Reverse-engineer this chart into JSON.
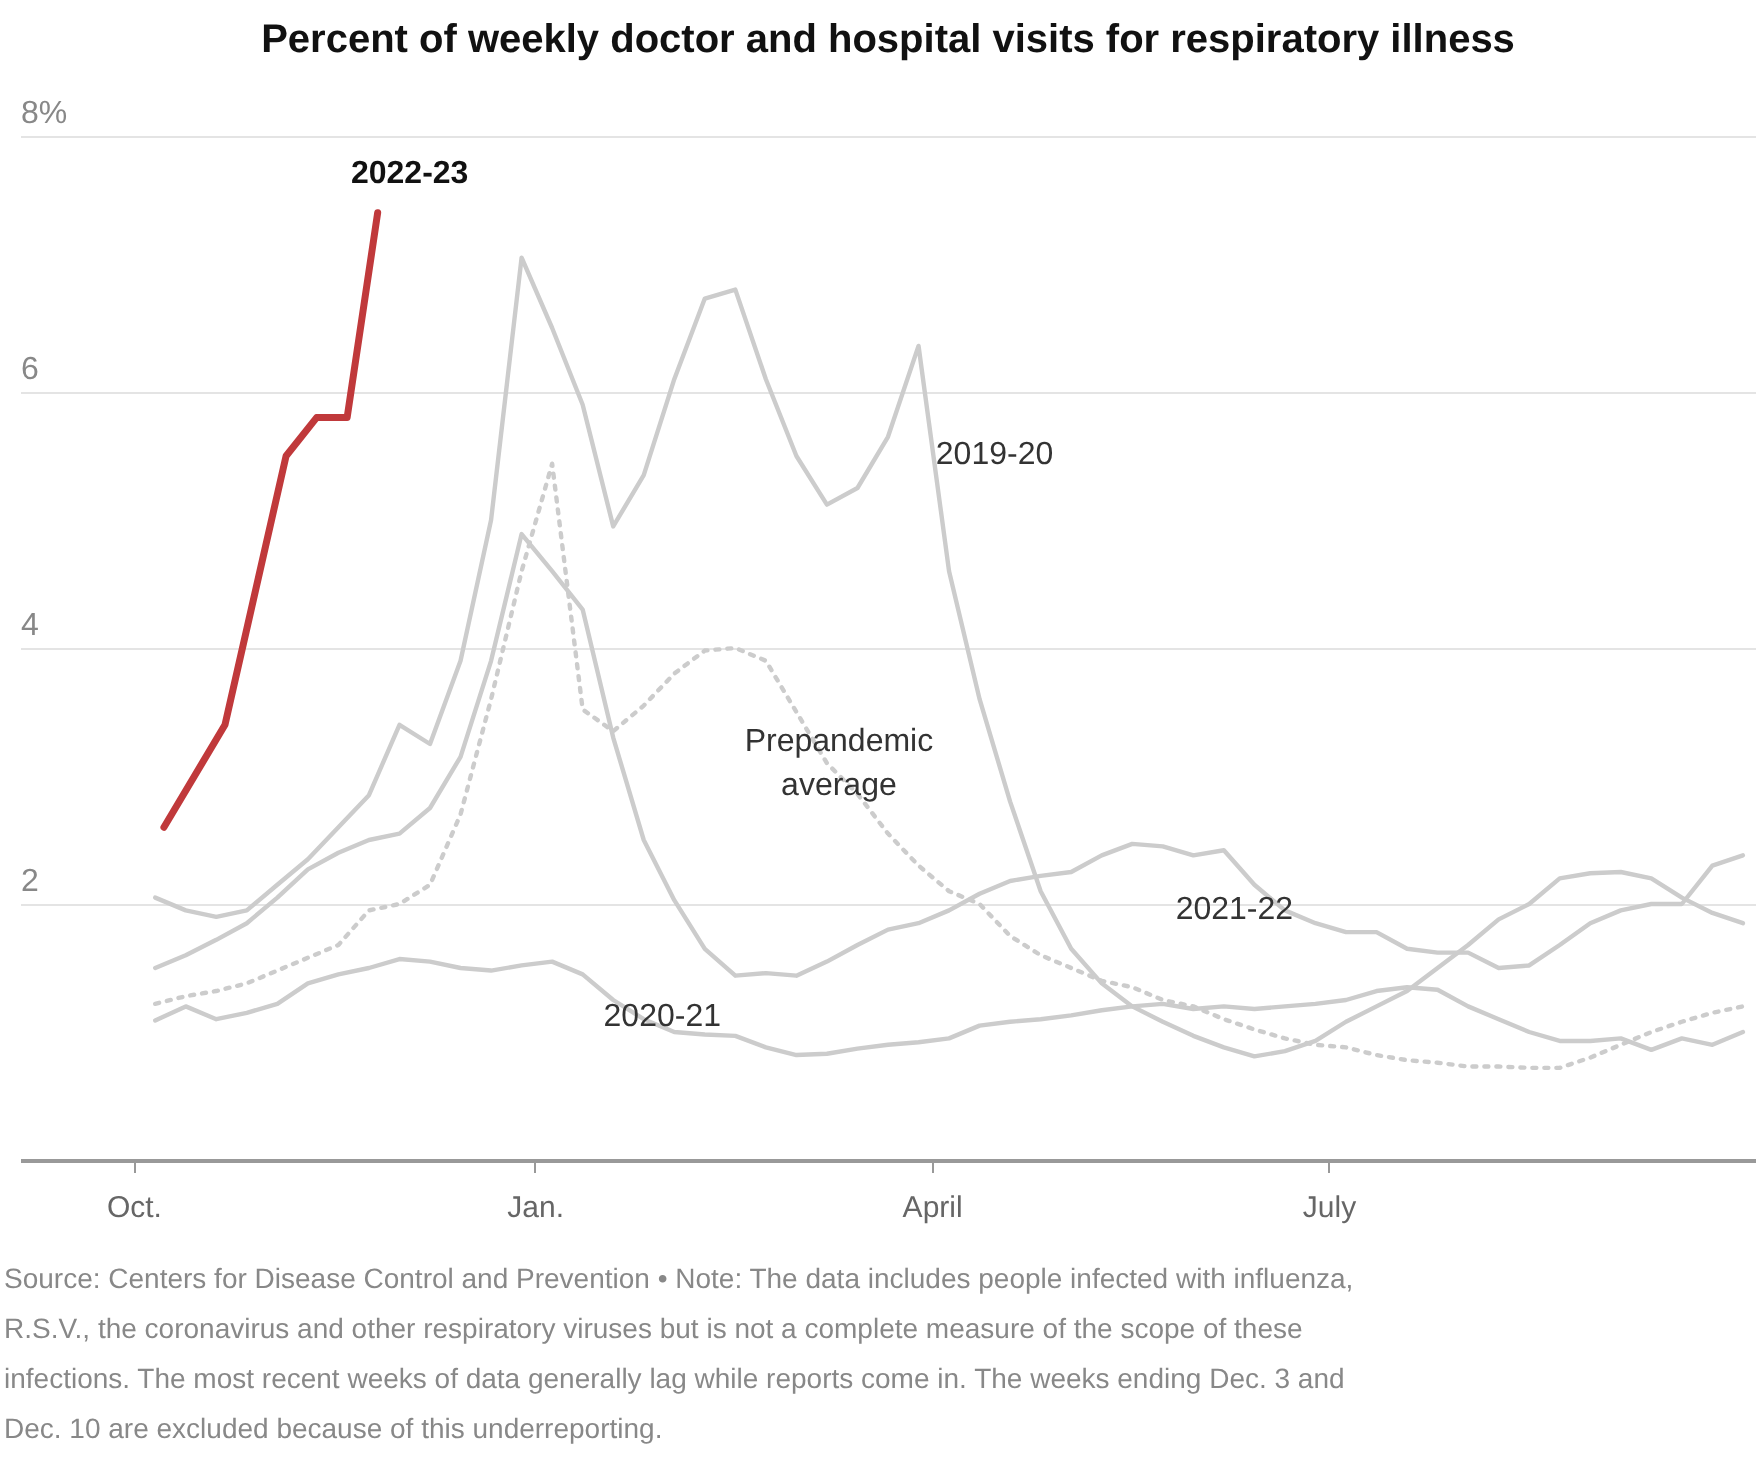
{
  "chart_data": {
    "type": "line",
    "title": "Percent of weekly doctor and hospital visits for respiratory illness",
    "x": [
      "2019-10-06",
      "2019-10-13",
      "2019-10-20",
      "2019-10-27",
      "2019-11-03",
      "2019-11-10",
      "2019-11-17",
      "2019-11-24",
      "2019-12-01",
      "2019-12-08",
      "2019-12-15",
      "2019-12-22",
      "2019-12-29",
      "2020-01-05",
      "2020-01-12",
      "2020-01-19",
      "2020-01-26",
      "2020-02-02",
      "2020-02-09",
      "2020-02-16",
      "2020-02-23",
      "2020-03-01",
      "2020-03-08",
      "2020-03-15",
      "2020-03-22",
      "2020-03-29",
      "2020-04-05",
      "2020-04-12",
      "2020-04-19",
      "2020-04-26",
      "2020-05-03",
      "2020-05-10",
      "2020-05-17",
      "2020-05-24",
      "2020-05-31",
      "2020-06-07",
      "2020-06-14",
      "2020-06-21",
      "2020-06-28",
      "2020-07-05",
      "2020-07-12",
      "2020-07-19",
      "2020-07-26",
      "2020-08-02",
      "2020-08-09",
      "2020-08-16",
      "2020-08-23",
      "2020-08-30",
      "2020-09-06",
      "2020-09-13",
      "2020-09-20",
      "2020-09-27",
      "2020-10-04"
    ],
    "series": [
      {
        "name": "2019-20",
        "color": "#cccccc",
        "values": [
          2.05,
          1.95,
          1.9,
          1.95,
          2.15,
          2.35,
          2.6,
          2.85,
          3.4,
          3.25,
          3.9,
          5.0,
          7.05,
          6.5,
          5.9,
          4.95,
          5.35,
          6.1,
          6.73,
          6.8,
          6.1,
          5.5,
          5.12,
          5.25,
          5.65,
          6.36,
          4.6,
          3.6,
          2.8,
          2.1,
          1.65,
          1.38,
          1.2,
          1.08,
          0.97,
          0.88,
          0.81,
          0.85,
          0.93,
          1.08,
          1.2,
          1.32,
          1.5,
          1.68,
          1.88,
          2.0,
          2.2,
          2.24,
          2.25,
          2.2,
          2.05,
          1.93,
          1.85
        ]
      },
      {
        "name": "2020-21",
        "color": "#cccccc",
        "values": [
          1.09,
          1.2,
          1.1,
          1.15,
          1.22,
          1.38,
          1.45,
          1.5,
          1.57,
          1.55,
          1.5,
          1.48,
          1.52,
          1.55,
          1.45,
          1.25,
          1.1,
          1.0,
          0.98,
          0.97,
          0.88,
          0.82,
          0.83,
          0.87,
          0.9,
          0.92,
          0.95,
          1.05,
          1.08,
          1.1,
          1.13,
          1.17,
          1.2,
          1.22,
          1.18,
          1.2,
          1.18,
          1.2,
          1.22,
          1.25,
          1.32,
          1.35,
          1.33,
          1.2,
          1.1,
          1.0,
          0.93,
          0.93,
          0.95,
          0.86,
          0.95,
          0.9,
          1.0
        ]
      },
      {
        "name": "2021-22",
        "color": "#cccccc",
        "values": [
          1.5,
          1.6,
          1.72,
          1.85,
          2.05,
          2.27,
          2.4,
          2.5,
          2.55,
          2.75,
          3.15,
          3.9,
          4.89,
          4.6,
          4.3,
          3.3,
          2.5,
          2.03,
          1.65,
          1.44,
          1.46,
          1.44,
          1.55,
          1.68,
          1.8,
          1.85,
          1.95,
          2.08,
          2.18,
          2.22,
          2.25,
          2.38,
          2.47,
          2.45,
          2.38,
          2.42,
          2.15,
          1.95,
          1.85,
          1.78,
          1.78,
          1.65,
          1.62,
          1.62,
          1.5,
          1.52,
          1.68,
          1.85,
          1.95,
          2.0,
          2.0,
          2.3,
          2.38
        ]
      },
      {
        "name": "Prepandemic average",
        "color": "#cccccc",
        "line_style": "dotted",
        "values": [
          1.22,
          1.28,
          1.32,
          1.38,
          1.48,
          1.58,
          1.68,
          1.95,
          2.0,
          2.15,
          2.7,
          3.6,
          4.6,
          5.44,
          3.52,
          3.35,
          3.55,
          3.8,
          3.98,
          4.0,
          3.9,
          3.5,
          3.1,
          2.86,
          2.55,
          2.3,
          2.1,
          2.0,
          1.75,
          1.6,
          1.5,
          1.4,
          1.35,
          1.25,
          1.2,
          1.1,
          1.02,
          0.95,
          0.9,
          0.88,
          0.82,
          0.78,
          0.76,
          0.73,
          0.73,
          0.72,
          0.72,
          0.8,
          0.9,
          1.0,
          1.08,
          1.15,
          1.2
        ]
      },
      {
        "name": "2022-23",
        "color": "#c0393b",
        "x": [
          "2019-10-08",
          "2019-10-22",
          "2019-11-05",
          "2019-11-12",
          "2019-11-19",
          "2019-11-26"
        ],
        "values": [
          2.6,
          3.4,
          5.5,
          5.8,
          5.8,
          7.4
        ]
      }
    ],
    "xlim": [
      "2019-09-05",
      "2020-10-07"
    ],
    "xticks": [
      {
        "value": "2019-10-01",
        "label": "Oct."
      },
      {
        "value": "2020-01-01",
        "label": "Jan."
      },
      {
        "value": "2020-04-01",
        "label": "April"
      },
      {
        "value": "2020-07-01",
        "label": "July"
      }
    ],
    "ylim": [
      0,
      8
    ],
    "yticks": [
      2,
      4,
      6,
      {
        "value": 8,
        "label": "8%"
      }
    ],
    "grid": "y",
    "annotations": [
      "Source: Centers for Disease Control and Prevention • Note: The data includes people infected with influenza, R.S.V., the coronavirus and other respiratory viruses but is not a complete measure of the scope of these infections. The most recent weeks of data generally lag while reports come in. The weeks ending Dec. 3 and Dec. 10 are excluded because of this underreporting."
    ]
  }
}
